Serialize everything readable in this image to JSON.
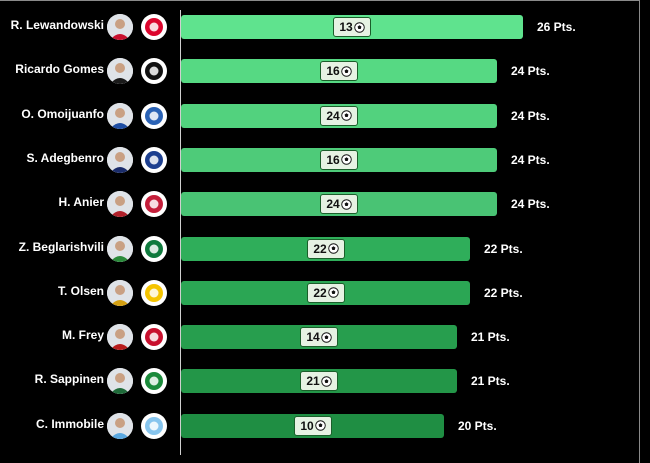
{
  "chart_data": {
    "type": "bar",
    "orientation": "horizontal",
    "xlim": [
      0,
      26
    ],
    "value_suffix": " Pts.",
    "players": [
      {
        "name": "R. Lewandowski",
        "points": 26,
        "goals": 13,
        "bar_color": "#5fe38e",
        "avatar_color": "#c8102e",
        "club_color": "#dc052d"
      },
      {
        "name": "Ricardo Gomes",
        "points": 24,
        "goals": 16,
        "bar_color": "#56d983",
        "avatar_color": "#1a1a1a",
        "club_color": "#111111"
      },
      {
        "name": "O. Omoijuanfo",
        "points": 24,
        "goals": 24,
        "bar_color": "#52d27e",
        "avatar_color": "#1f4ea3",
        "club_color": "#2a62b5"
      },
      {
        "name": "S. Adegbenro",
        "points": 24,
        "goals": 16,
        "bar_color": "#4ecb79",
        "avatar_color": "#1b2d6b",
        "club_color": "#1d3f8f"
      },
      {
        "name": "H. Anier",
        "points": 24,
        "goals": 24,
        "bar_color": "#49c374",
        "avatar_color": "#b0202a",
        "club_color": "#c41e3a"
      },
      {
        "name": "Z. Beglarishvili",
        "points": 22,
        "goals": 22,
        "bar_color": "#2fae5a",
        "avatar_color": "#2a8a3b",
        "club_color": "#0f7a3d"
      },
      {
        "name": "T. Olsen",
        "points": 22,
        "goals": 22,
        "bar_color": "#2ba654",
        "avatar_color": "#d4a012",
        "club_color": "#f5c400"
      },
      {
        "name": "M. Frey",
        "points": 21,
        "goals": 14,
        "bar_color": "#279e4e",
        "avatar_color": "#b71c1c",
        "club_color": "#c8102e"
      },
      {
        "name": "R. Sappinen",
        "points": 21,
        "goals": 21,
        "bar_color": "#239648",
        "avatar_color": "#1f6b3a",
        "club_color": "#1a8a3a"
      },
      {
        "name": "C. Immobile",
        "points": 20,
        "goals": 10,
        "bar_color": "#1f8e43",
        "avatar_color": "#5aa8e0",
        "club_color": "#87c5ee"
      }
    ]
  }
}
